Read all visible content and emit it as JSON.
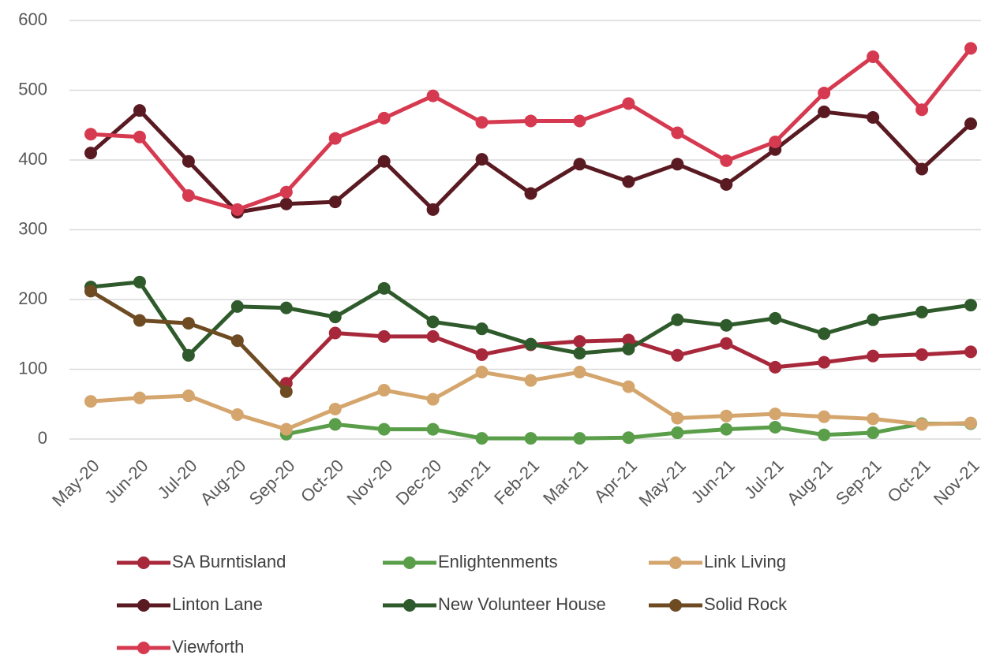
{
  "chart_data": {
    "type": "line",
    "categories": [
      "May-20",
      "Jun-20",
      "Jul-20",
      "Aug-20",
      "Sep-20",
      "Oct-20",
      "Nov-20",
      "Dec-20",
      "Jan-21",
      "Feb-21",
      "Mar-21",
      "Apr-21",
      "May-21",
      "Jun-21",
      "Jul-21",
      "Aug-21",
      "Sep-21",
      "Oct-21",
      "Nov-21"
    ],
    "series": [
      {
        "name": "SA Burntisland",
        "color": "#a8283b",
        "values": [
          null,
          null,
          null,
          null,
          80,
          152,
          147,
          147,
          121,
          135,
          140,
          142,
          120,
          137,
          103,
          110,
          119,
          121,
          125
        ]
      },
      {
        "name": "Enlightenments",
        "color": "#5a9e4a",
        "values": [
          null,
          null,
          null,
          null,
          7,
          21,
          14,
          14,
          1,
          1,
          1,
          2,
          9,
          14,
          17,
          6,
          9,
          22,
          22
        ]
      },
      {
        "name": "Link Living",
        "color": "#d4a56c",
        "values": [
          54,
          59,
          62,
          35,
          14,
          43,
          70,
          57,
          96,
          84,
          96,
          75,
          30,
          33,
          36,
          32,
          29,
          21,
          23
        ]
      },
      {
        "name": "Linton Lane",
        "color": "#5a1a22",
        "values": [
          410,
          471,
          398,
          325,
          337,
          340,
          398,
          329,
          401,
          352,
          394,
          369,
          394,
          365,
          415,
          469,
          461,
          387,
          452
        ]
      },
      {
        "name": "New Volunteer House",
        "color": "#2f5a2b",
        "values": [
          218,
          225,
          120,
          190,
          188,
          175,
          216,
          168,
          158,
          136,
          123,
          129,
          171,
          163,
          173,
          151,
          171,
          182,
          192
        ]
      },
      {
        "name": "Solid Rock",
        "color": "#6e4b22",
        "values": [
          212,
          170,
          166,
          141,
          68,
          null,
          null,
          null,
          null,
          null,
          null,
          null,
          null,
          null,
          null,
          null,
          null,
          null,
          null
        ]
      },
      {
        "name": "Viewforth",
        "color": "#d63a50",
        "values": [
          437,
          433,
          349,
          329,
          354,
          431,
          460,
          492,
          454,
          456,
          456,
          481,
          439,
          399,
          426,
          496,
          548,
          472,
          560
        ]
      }
    ],
    "ylim": [
      0,
      600
    ],
    "yticks": [
      0,
      100,
      200,
      300,
      400,
      500,
      600
    ],
    "grid": true
  }
}
